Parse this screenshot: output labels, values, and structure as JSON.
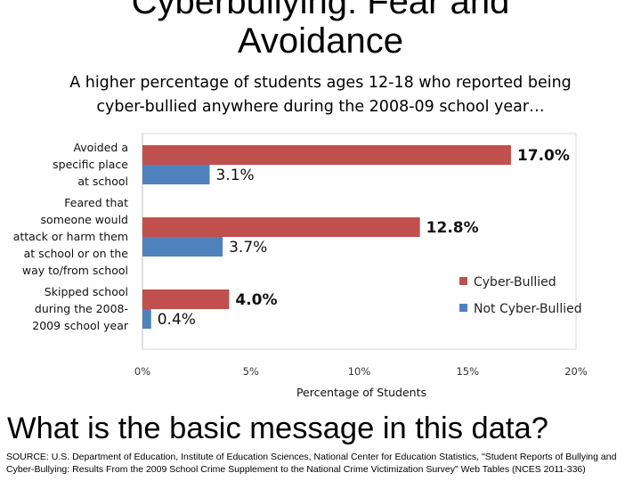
{
  "slide": {
    "title_line1": "Cyberbullying: Fear and",
    "title_line2": "Avoidance",
    "subtitle_line1": "A higher percentage of students ages 12-18 who reported being",
    "subtitle_line2": "cyber-bullied anywhere during the 2008-09 school year…",
    "question": "What is the basic message in this data?",
    "source": "SOURCE: U.S. Department of Education, Institute of Education Sciences, National Center for Education Statistics, \"Student Reports of Bullying and  Cyber-Bullying: Results From the 2009 School Crime Supplement to the National Crime Victimization Survey\" Web Tables (NCES 2011-336)"
  },
  "chart_data": {
    "type": "bar",
    "orientation": "horizontal",
    "xlabel": "Percentage of Students",
    "xlim": [
      0,
      20
    ],
    "xticks": [
      0,
      5,
      10,
      15,
      20
    ],
    "xtick_labels": [
      "0%",
      "5%",
      "10%",
      "15%",
      "20%"
    ],
    "grid": false,
    "legend_position": "right",
    "categories": [
      [
        "Avoided a",
        "specific place",
        "at school"
      ],
      [
        "Feared that",
        "someone would",
        "attack or harm them",
        "at school or on the",
        "way to/from school"
      ],
      [
        "Skipped school",
        "during the 2008-",
        "2009 school year"
      ]
    ],
    "series": [
      {
        "name": "Cyber-Bullied",
        "color": "#c0504d",
        "values": [
          17.0,
          12.8,
          4.0
        ],
        "labels": [
          "17.0%",
          "12.8%",
          "4.0%"
        ]
      },
      {
        "name": "Not Cyber-Bullied",
        "color": "#4f81bd",
        "values": [
          3.1,
          3.7,
          0.4
        ],
        "labels": [
          "3.1%",
          "3.7%",
          "0.4%"
        ]
      }
    ]
  }
}
